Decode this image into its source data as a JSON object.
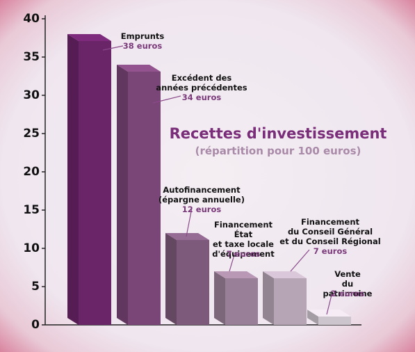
{
  "chart_data": {
    "type": "bar3d",
    "title": "Recettes d'investissement",
    "subtitle": "(répartition pour 100 euros)",
    "categories": [
      "Emprunts",
      "Excédent des\nannées précédentes",
      "Autofinancement\n(épargne annuelle)",
      "Financement État\net taxe locale\nd'équipement",
      "Financement\ndu Conseil Général\net du Conseil Régional",
      "Vente\ndu patrimoine"
    ],
    "values": [
      38,
      34,
      12,
      7,
      7,
      2
    ],
    "value_labels": [
      "38 euros",
      "34 euros",
      "12 euros",
      "7 euros",
      "7 euros",
      "2 euros"
    ],
    "colors": [
      "#6a2468",
      "#7a4577",
      "#7d5a7b",
      "#9a7f98",
      "#b6a6b5",
      "#cdc5cd"
    ],
    "ylim": [
      0,
      40
    ],
    "yticks": [
      0,
      5,
      10,
      15,
      20,
      25,
      30,
      35,
      40
    ]
  }
}
